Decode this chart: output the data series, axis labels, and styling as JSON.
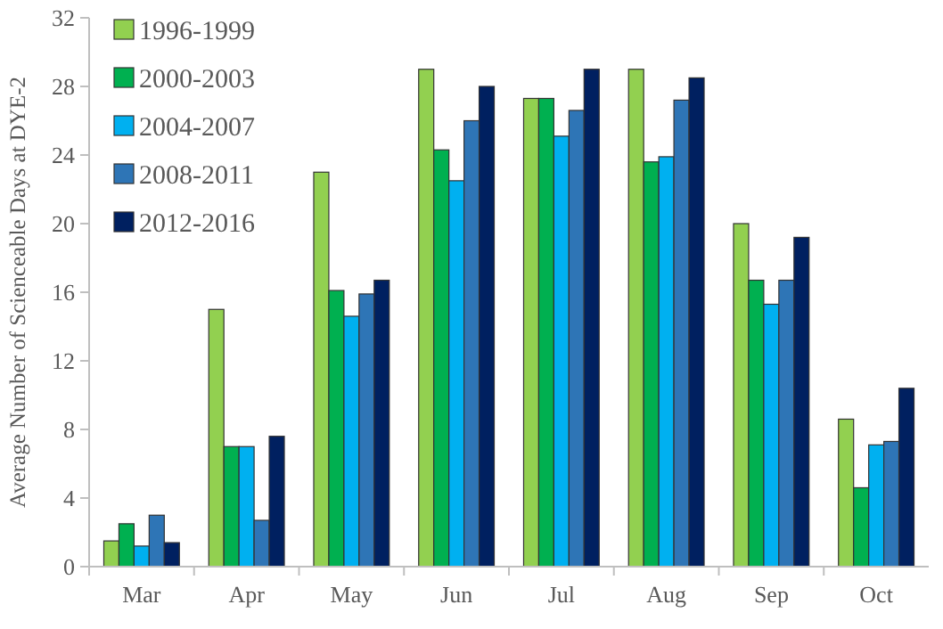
{
  "chart_data": {
    "type": "bar",
    "ylabel": "Average Number of Scienceable Days at DYE-2",
    "categories": [
      "Mar",
      "Apr",
      "May",
      "Jun",
      "Jul",
      "Aug",
      "Sep",
      "Oct"
    ],
    "series": [
      {
        "name": "1996-1999",
        "color": "#92d050",
        "values": [
          1.5,
          15,
          23,
          29,
          27.3,
          29,
          20,
          8.6
        ]
      },
      {
        "name": "2000-2003",
        "color": "#00b050",
        "values": [
          2.5,
          7,
          16.1,
          24.3,
          27.3,
          23.6,
          16.7,
          4.6
        ]
      },
      {
        "name": "2004-2007",
        "color": "#00b0f0",
        "values": [
          1.2,
          7,
          14.6,
          22.5,
          25.1,
          23.9,
          15.3,
          7.1
        ]
      },
      {
        "name": "2008-2011",
        "color": "#2e75b6",
        "values": [
          3,
          2.7,
          15.9,
          26,
          26.6,
          27.2,
          16.7,
          7.3
        ]
      },
      {
        "name": "2012-2016",
        "color": "#002060",
        "values": [
          1.4,
          7.6,
          16.7,
          28,
          29,
          28.5,
          19.2,
          10.4
        ]
      }
    ],
    "ylim": [
      0,
      32
    ],
    "yticks": [
      0,
      4,
      8,
      12,
      16,
      20,
      24,
      28,
      32
    ],
    "grid": false,
    "legend": "top left"
  }
}
